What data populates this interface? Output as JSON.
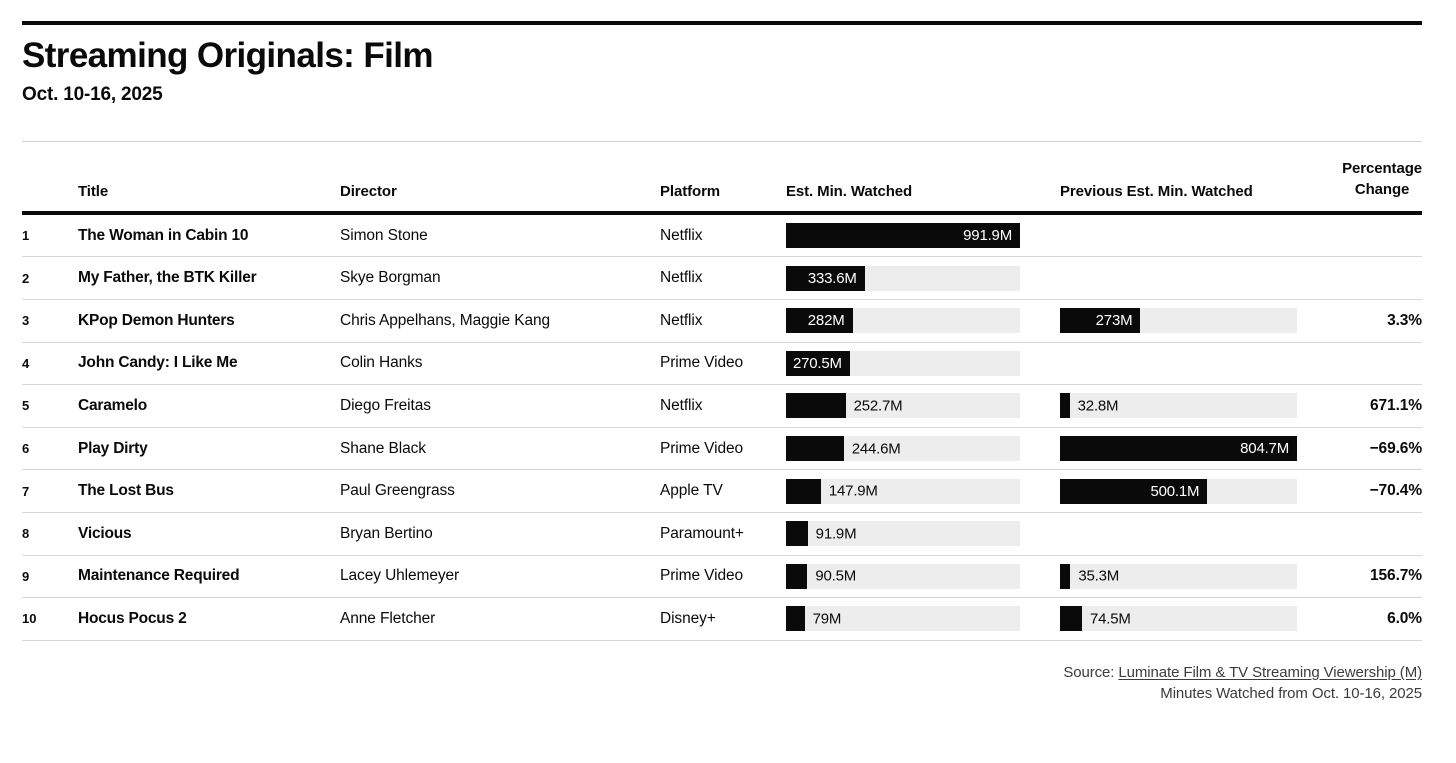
{
  "header": {
    "title": "Streaming Originals: Film",
    "subtitle": "Oct. 10-16, 2025"
  },
  "table_columns": {
    "title": "Title",
    "director": "Director",
    "platform": "Platform",
    "est": "Est. Min. Watched",
    "prev": "Previous Est. Min. Watched",
    "pct_line1": "Percentage",
    "pct_line2": "Change"
  },
  "chart_data": {
    "type": "bar",
    "title": "Streaming Originals: Film",
    "subtitle": "Oct. 10-16, 2025",
    "unit": "millions of minutes watched",
    "est_axis_max": 991.9,
    "prev_axis_max": 804.7,
    "bar_color": "#0a0a0a",
    "track_color": "#ededed",
    "rows": [
      {
        "rank": "1",
        "title": "The Woman in Cabin 10",
        "director": "Simon Stone",
        "platform": "Netflix",
        "est": 991.9,
        "est_label": "991.9M",
        "est_inside": true,
        "prev": null,
        "prev_label": "",
        "prev_inside": false,
        "pct": ""
      },
      {
        "rank": "2",
        "title": "My Father, the BTK Killer",
        "director": "Skye Borgman",
        "platform": "Netflix",
        "est": 333.6,
        "est_label": "333.6M",
        "est_inside": true,
        "prev": null,
        "prev_label": "",
        "prev_inside": false,
        "pct": ""
      },
      {
        "rank": "3",
        "title": "KPop Demon Hunters",
        "director": "Chris Appelhans, Maggie Kang",
        "platform": "Netflix",
        "est": 282,
        "est_label": "282M",
        "est_inside": true,
        "prev": 273,
        "prev_label": "273M",
        "prev_inside": true,
        "pct": "3.3%"
      },
      {
        "rank": "4",
        "title": "John Candy: I Like Me",
        "director": "Colin Hanks",
        "platform": "Prime Video",
        "est": 270.5,
        "est_label": "270.5M",
        "est_inside": true,
        "prev": null,
        "prev_label": "",
        "prev_inside": false,
        "pct": ""
      },
      {
        "rank": "5",
        "title": "Caramelo",
        "director": "Diego Freitas",
        "platform": "Netflix",
        "est": 252.7,
        "est_label": "252.7M",
        "est_inside": false,
        "prev": 32.8,
        "prev_label": "32.8M",
        "prev_inside": false,
        "pct": "671.1%"
      },
      {
        "rank": "6",
        "title": "Play Dirty",
        "director": "Shane Black",
        "platform": "Prime Video",
        "est": 244.6,
        "est_label": "244.6M",
        "est_inside": false,
        "prev": 804.7,
        "prev_label": "804.7M",
        "prev_inside": true,
        "pct": "−69.6%"
      },
      {
        "rank": "7",
        "title": "The Lost Bus",
        "director": "Paul Greengrass",
        "platform": "Apple TV",
        "est": 147.9,
        "est_label": "147.9M",
        "est_inside": false,
        "prev": 500.1,
        "prev_label": "500.1M",
        "prev_inside": true,
        "pct": "−70.4%"
      },
      {
        "rank": "8",
        "title": "Vicious",
        "director": "Bryan Bertino",
        "platform": "Paramount+",
        "est": 91.9,
        "est_label": "91.9M",
        "est_inside": false,
        "prev": null,
        "prev_label": "",
        "prev_inside": false,
        "pct": ""
      },
      {
        "rank": "9",
        "title": "Maintenance Required",
        "director": "Lacey Uhlemeyer",
        "platform": "Prime Video",
        "est": 90.5,
        "est_label": "90.5M",
        "est_inside": false,
        "prev": 35.3,
        "prev_label": "35.3M",
        "prev_inside": false,
        "pct": "156.7%"
      },
      {
        "rank": "10",
        "title": "Hocus Pocus 2",
        "director": "Anne Fletcher",
        "platform": "Disney+",
        "est": 79,
        "est_label": "79M",
        "est_inside": false,
        "prev": 74.5,
        "prev_label": "74.5M",
        "prev_inside": false,
        "pct": "6.0%"
      }
    ]
  },
  "footer": {
    "source_prefix": "Source: ",
    "source_link": "Luminate Film & TV Streaming Viewership (M)",
    "note": "Minutes Watched from Oct. 10-16, 2025"
  }
}
